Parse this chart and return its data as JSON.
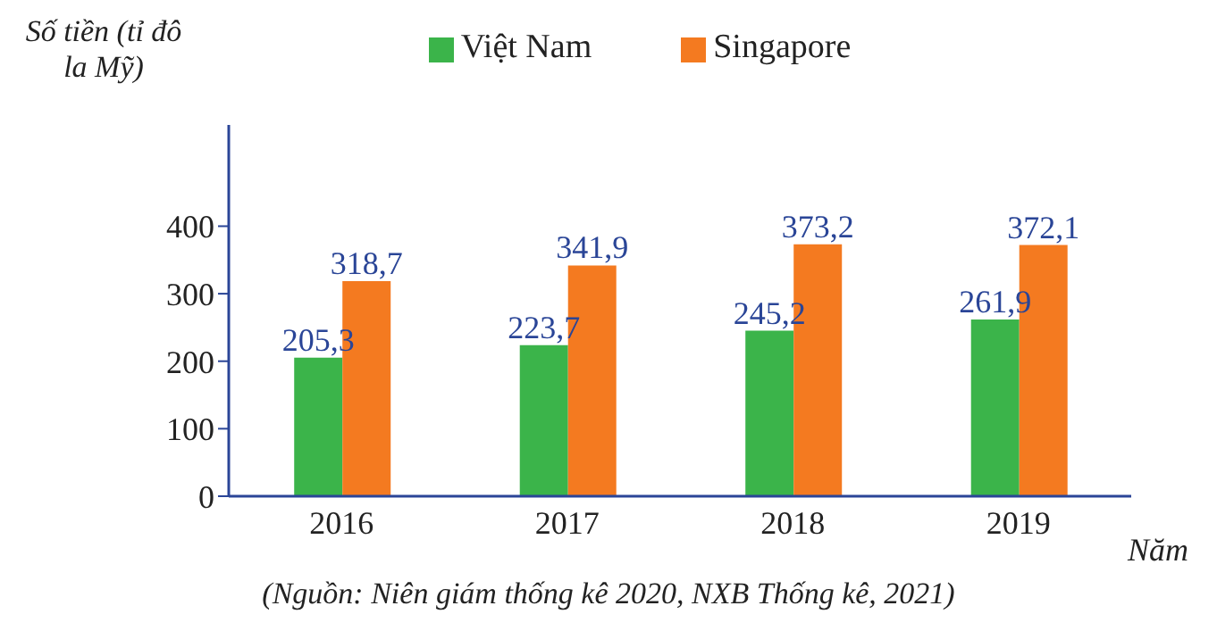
{
  "chart_data": {
    "type": "bar",
    "ylabel": "Số tiền (tỉ đô la Mỹ)",
    "xlabel": "Năm",
    "categories": [
      "2016",
      "2017",
      "2018",
      "2019"
    ],
    "series": [
      {
        "name": "Việt Nam",
        "color": "#3bb44a",
        "values": [
          205.3,
          223.7,
          245.2,
          261.9
        ],
        "value_labels": [
          "205,3",
          "223,7",
          "245,2",
          "261,9"
        ]
      },
      {
        "name": "Singapore",
        "color": "#f47a20",
        "values": [
          318.7,
          341.9,
          373.2,
          372.1
        ],
        "value_labels": [
          "318,7",
          "341,9",
          "373,2",
          "372,1"
        ]
      }
    ],
    "ylim": [
      0,
      550
    ],
    "yticks": [
      0,
      100,
      200,
      300,
      400
    ],
    "grid": false,
    "legend": "top",
    "annotations": [
      "(Nguồn: Niên giám thống kê 2020, NXB Thống kê, 2021)"
    ]
  }
}
